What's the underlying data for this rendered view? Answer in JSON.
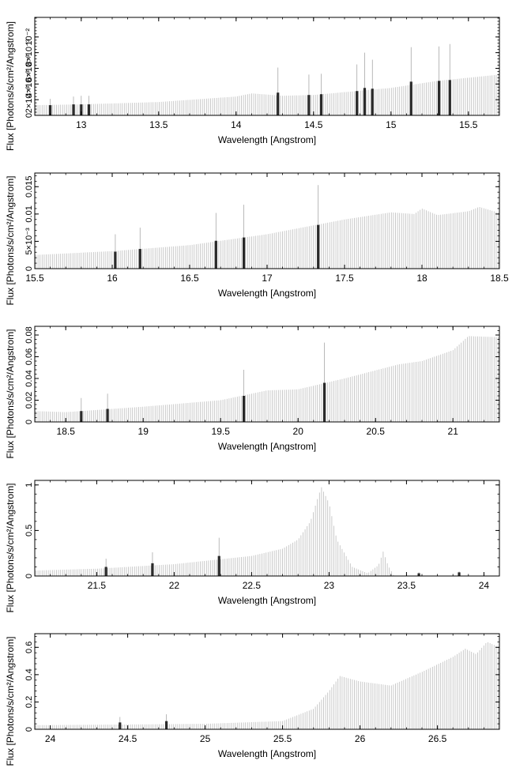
{
  "chart_data": [
    {
      "type": "line",
      "xlabel": "Wavelength [Angstrom]",
      "ylabel": "Flux [Photons/s/cm²/Angstrom]",
      "xlim": [
        12.7,
        15.7
      ],
      "ylim": [
        0,
        0.0125
      ],
      "xticks": [
        13,
        13.5,
        14,
        14.5,
        15,
        15.5
      ],
      "xticklabels": [
        "13",
        "13.5",
        "14",
        "14.5",
        "15",
        "15.5"
      ],
      "yticks": [
        0,
        0.002,
        0.004,
        0.006,
        0.008,
        0.01
      ],
      "yticklabels": [
        "0",
        "2×10⁻³",
        "4×10⁻³",
        "6×10⁻³",
        "8×10⁻³",
        "10⁻²"
      ],
      "continuum": {
        "x": [
          12.7,
          13.0,
          13.5,
          14.0,
          14.1,
          14.3,
          14.5,
          15.0,
          15.3,
          15.5,
          15.7
        ],
        "y": [
          0.0013,
          0.0014,
          0.0017,
          0.0024,
          0.0028,
          0.0025,
          0.0026,
          0.0035,
          0.0044,
          0.0048,
          0.0052
        ]
      },
      "lines": [
        {
          "x": 12.8,
          "bar": 0.0013,
          "peak": 0.0021
        },
        {
          "x": 12.95,
          "bar": 0.0014,
          "peak": 0.0024
        },
        {
          "x": 13.0,
          "bar": 0.0014,
          "peak": 0.0025
        },
        {
          "x": 13.05,
          "bar": 0.0014,
          "peak": 0.0025
        },
        {
          "x": 14.27,
          "bar": 0.0029,
          "peak": 0.0061
        },
        {
          "x": 14.47,
          "bar": 0.0026,
          "peak": 0.0052
        },
        {
          "x": 14.55,
          "bar": 0.0027,
          "peak": 0.0053
        },
        {
          "x": 14.78,
          "bar": 0.0031,
          "peak": 0.0065
        },
        {
          "x": 14.83,
          "bar": 0.0035,
          "peak": 0.008
        },
        {
          "x": 14.88,
          "bar": 0.0034,
          "peak": 0.0071
        },
        {
          "x": 15.13,
          "bar": 0.0043,
          "peak": 0.0087
        },
        {
          "x": 15.31,
          "bar": 0.0044,
          "peak": 0.0088
        },
        {
          "x": 15.38,
          "bar": 0.0045,
          "peak": 0.0091
        }
      ]
    },
    {
      "type": "line",
      "xlabel": "Wavelength [Angstrom]",
      "ylabel": "Flux [Photons/s/cm²/Angstrom]",
      "xlim": [
        15.5,
        18.5
      ],
      "ylim": [
        0,
        0.0175
      ],
      "xticks": [
        15.5,
        16,
        16.5,
        17,
        17.5,
        18,
        18.5
      ],
      "xticklabels": [
        "15.5",
        "16",
        "16.5",
        "17",
        "17.5",
        "18",
        "18.5"
      ],
      "yticks": [
        0,
        0.005,
        0.01,
        0.015
      ],
      "yticklabels": [
        "0",
        "5×10⁻³",
        "0.01",
        "0.015"
      ],
      "continuum": {
        "x": [
          15.5,
          16.0,
          16.5,
          17.0,
          17.5,
          17.8,
          17.95,
          18.0,
          18.1,
          18.3,
          18.37,
          18.5
        ],
        "y": [
          0.0025,
          0.0032,
          0.0043,
          0.0063,
          0.009,
          0.0103,
          0.01,
          0.011,
          0.0098,
          0.0105,
          0.0113,
          0.0102
        ]
      },
      "lines": [
        {
          "x": 16.02,
          "bar": 0.0031,
          "peak": 0.0063
        },
        {
          "x": 16.18,
          "bar": 0.0036,
          "peak": 0.0075
        },
        {
          "x": 16.67,
          "bar": 0.0051,
          "peak": 0.0102
        },
        {
          "x": 16.85,
          "bar": 0.0057,
          "peak": 0.0117
        },
        {
          "x": 17.33,
          "bar": 0.008,
          "peak": 0.0153
        }
      ]
    },
    {
      "type": "line",
      "xlabel": "Wavelength [Angstrom]",
      "ylabel": "Flux [Photons/s/cm²/Angstrom]",
      "xlim": [
        18.3,
        21.3
      ],
      "ylim": [
        0,
        0.088
      ],
      "xticks": [
        18.5,
        19,
        19.5,
        20,
        20.5,
        21
      ],
      "xticklabels": [
        "18.5",
        "19",
        "19.5",
        "20",
        "20.5",
        "21"
      ],
      "yticks": [
        0,
        0.02,
        0.04,
        0.06,
        0.08
      ],
      "yticklabels": [
        "0",
        "0.02",
        "0.04",
        "0.06",
        "0.08"
      ],
      "continuum": {
        "x": [
          18.3,
          18.5,
          19.0,
          19.5,
          19.8,
          20.0,
          20.3,
          20.65,
          20.8,
          21.0,
          21.1,
          21.3
        ],
        "y": [
          0.01,
          0.009,
          0.014,
          0.02,
          0.029,
          0.03,
          0.04,
          0.053,
          0.056,
          0.066,
          0.079,
          0.078
        ]
      },
      "lines": [
        {
          "x": 18.6,
          "bar": 0.01,
          "peak": 0.022
        },
        {
          "x": 18.77,
          "bar": 0.012,
          "peak": 0.026
        },
        {
          "x": 19.65,
          "bar": 0.024,
          "peak": 0.048
        },
        {
          "x": 20.17,
          "bar": 0.036,
          "peak": 0.073
        }
      ]
    },
    {
      "type": "line",
      "xlabel": "Wavelength [Angstrom]",
      "ylabel": "Flux [Photons/s/cm²/Angstrom]",
      "xlim": [
        21.1,
        24.1
      ],
      "ylim": [
        0,
        1.05
      ],
      "xticks": [
        21.5,
        22,
        22.5,
        23,
        23.5,
        24
      ],
      "xticklabels": [
        "21.5",
        "22",
        "22.5",
        "23",
        "23.5",
        "24"
      ],
      "yticks": [
        0,
        0.5,
        1
      ],
      "yticklabels": [
        "0",
        "0.5",
        "1"
      ],
      "continuum": {
        "x": [
          21.1,
          21.5,
          22.0,
          22.5,
          22.7,
          22.8,
          22.88,
          22.95,
          23.0,
          23.05,
          23.15,
          23.25,
          23.32,
          23.35,
          23.38,
          23.42,
          24.1
        ],
        "y": [
          0.06,
          0.08,
          0.13,
          0.22,
          0.3,
          0.4,
          0.6,
          0.98,
          0.8,
          0.4,
          0.1,
          0.03,
          0.12,
          0.27,
          0.12,
          0.0,
          0.0
        ]
      },
      "lines": [
        {
          "x": 21.56,
          "bar": 0.1,
          "peak": 0.19
        },
        {
          "x": 21.86,
          "bar": 0.14,
          "peak": 0.26
        },
        {
          "x": 22.29,
          "bar": 0.22,
          "peak": 0.42
        },
        {
          "x": 23.58,
          "bar": 0.03,
          "peak": 0.04
        },
        {
          "x": 23.84,
          "bar": 0.04,
          "peak": 0.05
        }
      ]
    },
    {
      "type": "line",
      "xlabel": "Wavelength [Angstrom]",
      "ylabel": "Flux [Photons/s/cm²/Angstrom]",
      "xlim": [
        23.9,
        26.9
      ],
      "ylim": [
        0,
        0.7
      ],
      "xticks": [
        24,
        24.5,
        25,
        25.5,
        26,
        26.5
      ],
      "xticklabels": [
        "24",
        "24.5",
        "25",
        "25.5",
        "26",
        "26.5"
      ],
      "yticks": [
        0,
        0.2,
        0.4,
        0.6
      ],
      "yticklabels": [
        "0",
        "0.2",
        "0.4",
        "0.6"
      ],
      "continuum": {
        "x": [
          23.9,
          24.5,
          25.0,
          25.5,
          25.7,
          25.8,
          25.87,
          26.0,
          26.2,
          26.4,
          26.6,
          26.68,
          26.75,
          26.82,
          26.9
        ],
        "y": [
          0.03,
          0.035,
          0.04,
          0.06,
          0.15,
          0.28,
          0.39,
          0.35,
          0.32,
          0.42,
          0.53,
          0.59,
          0.55,
          0.64,
          0.6
        ]
      },
      "lines": [
        {
          "x": 24.45,
          "bar": 0.05,
          "peak": 0.09
        },
        {
          "x": 24.75,
          "bar": 0.06,
          "peak": 0.11
        }
      ]
    }
  ]
}
